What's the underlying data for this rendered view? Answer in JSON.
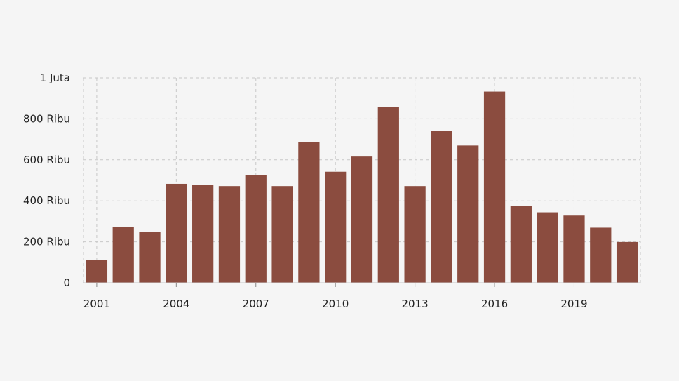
{
  "chart_data": {
    "type": "bar",
    "categories": [
      "2001",
      "2002",
      "2003",
      "2004",
      "2005",
      "2006",
      "2007",
      "2008",
      "2009",
      "2010",
      "2011",
      "2012",
      "2013",
      "2014",
      "2015",
      "2016",
      "2017",
      "2018",
      "2019",
      "2020",
      "2021"
    ],
    "values": [
      113000,
      274000,
      248000,
      483000,
      478000,
      472000,
      526000,
      472000,
      686000,
      542000,
      616000,
      858000,
      472000,
      740000,
      670000,
      933000,
      376000,
      344000,
      328000,
      269000,
      199000
    ],
    "x_tick_labels": [
      "2001",
      "2004",
      "2007",
      "2010",
      "2013",
      "2016",
      "2019"
    ],
    "y_ticks": [
      {
        "value": 0,
        "label": "0"
      },
      {
        "value": 200000,
        "label": "200 Ribu"
      },
      {
        "value": 400000,
        "label": "400 Ribu"
      },
      {
        "value": 600000,
        "label": "600 Ribu"
      },
      {
        "value": 800000,
        "label": "800 Ribu"
      },
      {
        "value": 1000000,
        "label": "1 Juta"
      }
    ],
    "ylim": [
      0,
      1000000
    ],
    "title": "",
    "xlabel": "",
    "ylabel": "",
    "grid": true,
    "bar_color": "#8b4c3f"
  }
}
